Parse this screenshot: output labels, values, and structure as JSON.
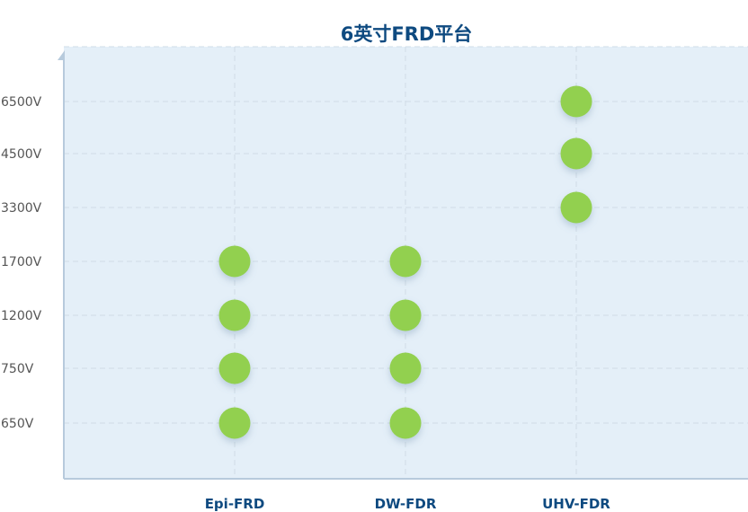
{
  "chart_data": {
    "type": "scatter",
    "title": "6英寸FRD平台",
    "x_categories": [
      "Epi-FRD",
      "DW-FDR",
      "UHV-FDR"
    ],
    "y_categories": [
      "650V",
      "750V",
      "1200V",
      "1700V",
      "3300V",
      "4500V",
      "6500V"
    ],
    "points": [
      {
        "x": "Epi-FRD",
        "y": "650V"
      },
      {
        "x": "Epi-FRD",
        "y": "750V"
      },
      {
        "x": "Epi-FRD",
        "y": "1200V"
      },
      {
        "x": "Epi-FRD",
        "y": "1700V"
      },
      {
        "x": "DW-FDR",
        "y": "650V"
      },
      {
        "x": "DW-FDR",
        "y": "750V"
      },
      {
        "x": "DW-FDR",
        "y": "1200V"
      },
      {
        "x": "DW-FDR",
        "y": "1700V"
      },
      {
        "x": "UHV-FDR",
        "y": "3300V"
      },
      {
        "x": "UHV-FDR",
        "y": "4500V"
      },
      {
        "x": "UHV-FDR",
        "y": "6500V"
      }
    ],
    "grid": true,
    "colors": {
      "point": "#92d050",
      "plot_bg": "#e4eff8",
      "title": "#0e4a80",
      "axis": "#b7cadc"
    }
  }
}
